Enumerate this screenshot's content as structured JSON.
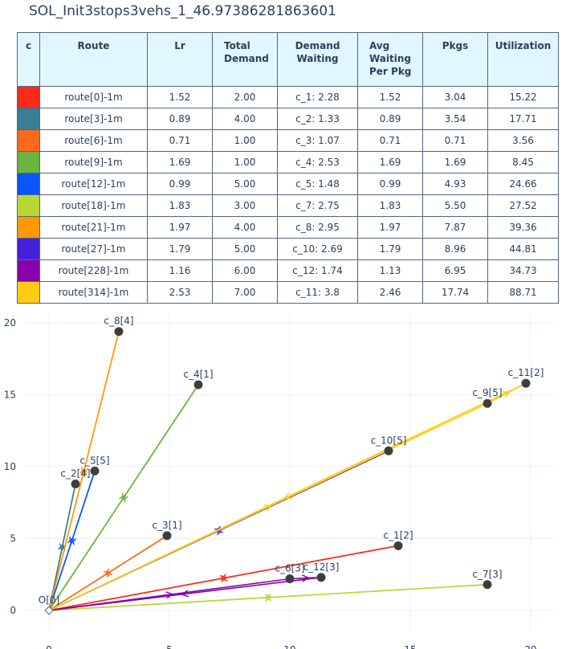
{
  "title": "SOL_Init3stops3vehs_1_46.97386281863601",
  "table": {
    "headers": [
      "c",
      "Route",
      "Lr",
      "Total Demand",
      "Demand Waiting",
      "Avg Waiting Per Pkg",
      "Pkgs",
      "Utilization"
    ],
    "rows": [
      {
        "color": "#ff2a1a",
        "route": "route[0]-1m",
        "lr": "1.52",
        "total_demand": "2.00",
        "demand_waiting": "c_1: 2.28",
        "avg_waiting": "1.52",
        "pkgs": "3.04",
        "utilization": "15.22"
      },
      {
        "color": "#3a7d96",
        "route": "route[3]-1m",
        "lr": "0.89",
        "total_demand": "4.00",
        "demand_waiting": "c_2: 1.33",
        "avg_waiting": "0.89",
        "pkgs": "3.54",
        "utilization": "17.71"
      },
      {
        "color": "#ff6a1a",
        "route": "route[6]-1m",
        "lr": "0.71",
        "total_demand": "1.00",
        "demand_waiting": "c_3: 1.07",
        "avg_waiting": "0.71",
        "pkgs": "0.71",
        "utilization": "3.56"
      },
      {
        "color": "#6db33f",
        "route": "route[9]-1m",
        "lr": "1.69",
        "total_demand": "1.00",
        "demand_waiting": "c_4: 2.53",
        "avg_waiting": "1.69",
        "pkgs": "1.69",
        "utilization": "8.45"
      },
      {
        "color": "#0a55ff",
        "route": "route[12]-1m",
        "lr": "0.99",
        "total_demand": "5.00",
        "demand_waiting": "c_5: 1.48",
        "avg_waiting": "0.99",
        "pkgs": "4.93",
        "utilization": "24.66"
      },
      {
        "color": "#b8d935",
        "route": "route[18]-1m",
        "lr": "1.83",
        "total_demand": "3.00",
        "demand_waiting": "c_7: 2.75",
        "avg_waiting": "1.83",
        "pkgs": "5.50",
        "utilization": "27.52"
      },
      {
        "color": "#ff9a00",
        "route": "route[21]-1m",
        "lr": "1.97",
        "total_demand": "4.00",
        "demand_waiting": "c_8: 2.95",
        "avg_waiting": "1.97",
        "pkgs": "7.87",
        "utilization": "39.36"
      },
      {
        "color": "#4422dd",
        "route": "route[27]-1m",
        "lr": "1.79",
        "total_demand": "5.00",
        "demand_waiting": "c_10: 2.69",
        "avg_waiting": "1.79",
        "pkgs": "8.96",
        "utilization": "44.81"
      },
      {
        "color": "#8800aa",
        "route": "route[228]-1m",
        "lr": "1.16",
        "total_demand": "6.00",
        "demand_waiting": "c_12: 1.74",
        "avg_waiting": "1.13",
        "pkgs": "6.95",
        "utilization": "34.73"
      },
      {
        "color": "#ffcc11",
        "route": "route[314]-1m",
        "lr": "2.53",
        "total_demand": "7.00",
        "demand_waiting": "c_11: 3.8",
        "avg_waiting": "2.46",
        "pkgs": "17.74",
        "utilization": "88.71"
      }
    ]
  },
  "chart_data": {
    "type": "scatter",
    "xlim": [
      -1,
      21
    ],
    "ylim": [
      -1.5,
      20.8
    ],
    "x_ticks": [
      0,
      5,
      10,
      15,
      20
    ],
    "y_ticks": [
      0,
      5,
      10,
      15,
      20
    ],
    "grid": true,
    "depot": {
      "label": "O[0]",
      "x": 0,
      "y": 0
    },
    "nodes": [
      {
        "label": "c_1[2]",
        "x": 14.5,
        "y": 4.5
      },
      {
        "label": "c_2[4]",
        "x": 1.1,
        "y": 8.8
      },
      {
        "label": "c_3[1]",
        "x": 4.9,
        "y": 5.2
      },
      {
        "label": "c_4[1]",
        "x": 6.2,
        "y": 15.7
      },
      {
        "label": "c_5[5]",
        "x": 1.9,
        "y": 9.7
      },
      {
        "label": "c_6[3]",
        "x": 10.0,
        "y": 2.2
      },
      {
        "label": "c_7[3]",
        "x": 18.2,
        "y": 1.8
      },
      {
        "label": "c_8[4]",
        "x": 2.9,
        "y": 19.4
      },
      {
        "label": "c_9[5]",
        "x": 18.2,
        "y": 14.4
      },
      {
        "label": "c_10[5]",
        "x": 14.1,
        "y": 11.1
      },
      {
        "label": "c_11[2]",
        "x": 19.8,
        "y": 15.8
      },
      {
        "label": "c_12[3]",
        "x": 11.3,
        "y": 2.3
      }
    ],
    "routes": [
      {
        "color": "#ff2a1a",
        "path": [
          [
            0,
            0
          ],
          [
            14.5,
            4.5
          ],
          [
            0,
            0
          ]
        ]
      },
      {
        "color": "#3a7d96",
        "path": [
          [
            0,
            0
          ],
          [
            1.1,
            8.8
          ],
          [
            0,
            0
          ]
        ]
      },
      {
        "color": "#ff6a1a",
        "path": [
          [
            0,
            0
          ],
          [
            4.9,
            5.2
          ],
          [
            0,
            0
          ]
        ]
      },
      {
        "color": "#6db33f",
        "path": [
          [
            0,
            0
          ],
          [
            6.2,
            15.7
          ],
          [
            0,
            0
          ]
        ]
      },
      {
        "color": "#0a55ff",
        "path": [
          [
            0,
            0
          ],
          [
            1.9,
            9.7
          ],
          [
            0,
            0
          ]
        ]
      },
      {
        "color": "#b8d935",
        "path": [
          [
            0,
            0
          ],
          [
            18.2,
            1.8
          ],
          [
            0,
            0
          ]
        ]
      },
      {
        "color": "#ff9a00",
        "path": [
          [
            0,
            0
          ],
          [
            2.9,
            19.4
          ],
          [
            0,
            0
          ]
        ]
      },
      {
        "color": "#4422dd",
        "path": [
          [
            0,
            0
          ],
          [
            14.1,
            11.1
          ],
          [
            0,
            0
          ]
        ]
      },
      {
        "color": "#8800aa",
        "path": [
          [
            0,
            0
          ],
          [
            10.0,
            2.2
          ],
          [
            11.3,
            2.3
          ],
          [
            0,
            0
          ]
        ]
      },
      {
        "color": "#ffcc11",
        "path": [
          [
            0,
            0
          ],
          [
            18.2,
            14.4
          ],
          [
            19.8,
            15.8
          ],
          [
            0,
            0
          ]
        ]
      }
    ]
  }
}
